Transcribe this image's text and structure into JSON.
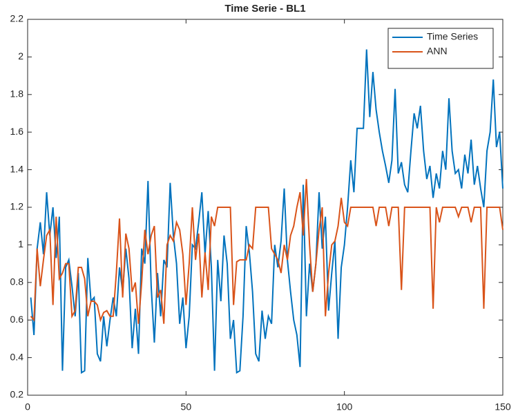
{
  "chart_data": {
    "type": "line",
    "title": "Time Serie - BL1",
    "x": [
      1,
      2,
      3,
      4,
      5,
      6,
      7,
      8,
      9,
      10,
      11,
      12,
      13,
      14,
      15,
      16,
      17,
      18,
      19,
      20,
      21,
      22,
      23,
      24,
      25,
      26,
      27,
      28,
      29,
      30,
      31,
      32,
      33,
      34,
      35,
      36,
      37,
      38,
      39,
      40,
      41,
      42,
      43,
      44,
      45,
      46,
      47,
      48,
      49,
      50,
      51,
      52,
      53,
      54,
      55,
      56,
      57,
      58,
      59,
      60,
      61,
      62,
      63,
      64,
      65,
      66,
      67,
      68,
      69,
      70,
      71,
      72,
      73,
      74,
      75,
      76,
      77,
      78,
      79,
      80,
      81,
      82,
      83,
      84,
      85,
      86,
      87,
      88,
      89,
      90,
      91,
      92,
      93,
      94,
      95,
      96,
      97,
      98,
      99,
      100,
      101,
      102,
      103,
      104,
      105,
      106,
      107,
      108,
      109,
      110,
      111,
      112,
      113,
      114,
      115,
      116,
      117,
      118,
      119,
      120,
      121,
      122,
      123,
      124,
      125,
      126,
      127,
      128,
      129,
      130,
      131,
      132,
      133,
      134,
      135,
      136,
      137,
      138,
      139,
      140,
      141,
      142,
      143,
      144,
      145,
      146,
      147,
      148,
      149,
      150
    ],
    "series": [
      {
        "name": "Time Series",
        "color": "#0072bd",
        "values": [
          0.72,
          0.52,
          0.98,
          1.12,
          0.95,
          1.28,
          1.05,
          1.2,
          0.93,
          1.15,
          0.33,
          0.88,
          0.92,
          0.78,
          0.62,
          0.85,
          0.32,
          0.33,
          0.93,
          0.7,
          0.72,
          0.42,
          0.38,
          0.62,
          0.46,
          0.6,
          0.72,
          0.62,
          0.88,
          0.75,
          0.98,
          0.82,
          0.45,
          0.66,
          0.42,
          0.98,
          0.9,
          1.34,
          0.78,
          0.48,
          0.85,
          0.62,
          0.92,
          0.88,
          1.33,
          1.05,
          0.9,
          0.58,
          0.72,
          0.45,
          0.62,
          1.0,
          0.98,
          1.12,
          1.28,
          0.95,
          1.18,
          0.88,
          0.33,
          0.92,
          0.7,
          1.05,
          0.9,
          0.5,
          0.6,
          0.32,
          0.33,
          0.62,
          1.1,
          0.96,
          0.75,
          0.42,
          0.38,
          0.65,
          0.5,
          0.62,
          0.58,
          1.0,
          0.88,
          1.02,
          1.3,
          0.92,
          0.75,
          0.6,
          0.52,
          0.35,
          1.32,
          0.62,
          0.9,
          0.75,
          0.9,
          1.28,
          0.98,
          1.15,
          0.65,
          0.85,
          1.02,
          0.5,
          0.88,
          1.0,
          1.2,
          1.45,
          1.28,
          1.62,
          1.62,
          1.62,
          2.04,
          1.68,
          1.92,
          1.72,
          1.6,
          1.5,
          1.42,
          1.33,
          1.45,
          1.83,
          1.38,
          1.44,
          1.32,
          1.28,
          1.5,
          1.7,
          1.62,
          1.74,
          1.5,
          1.35,
          1.42,
          1.25,
          1.38,
          1.3,
          1.5,
          1.4,
          1.78,
          1.5,
          1.38,
          1.4,
          1.3,
          1.48,
          1.38,
          1.56,
          1.32,
          1.42,
          1.3,
          1.2,
          1.5,
          1.6,
          1.88,
          1.52,
          1.6,
          1.3
        ]
      },
      {
        "name": "ANN",
        "color": "#d95319",
        "values": [
          0.62,
          0.6,
          0.98,
          0.78,
          0.92,
          1.05,
          1.08,
          0.68,
          1.15,
          0.82,
          0.85,
          0.9,
          0.9,
          0.62,
          0.65,
          0.88,
          0.88,
          0.82,
          0.62,
          0.7,
          0.7,
          0.68,
          0.6,
          0.64,
          0.65,
          0.62,
          0.62,
          0.85,
          1.14,
          0.72,
          1.06,
          0.98,
          0.75,
          0.8,
          0.58,
          0.8,
          1.08,
          0.95,
          1.05,
          1.1,
          0.72,
          0.76,
          0.58,
          1.0,
          1.05,
          1.02,
          1.12,
          1.08,
          0.95,
          0.68,
          0.9,
          1.2,
          0.92,
          1.06,
          0.72,
          0.96,
          0.76,
          1.15,
          1.1,
          1.2,
          1.2,
          1.2,
          1.2,
          1.2,
          0.68,
          0.91,
          0.92,
          0.92,
          0.92,
          1.0,
          0.98,
          1.2,
          1.2,
          1.2,
          1.2,
          1.2,
          0.98,
          0.95,
          0.92,
          0.85,
          1.0,
          0.92,
          1.05,
          1.1,
          1.2,
          1.28,
          1.05,
          1.35,
          1.0,
          0.75,
          0.9,
          1.08,
          1.2,
          0.62,
          0.85,
          1.0,
          1.02,
          1.1,
          1.25,
          1.12,
          1.1,
          1.2,
          1.2,
          1.2,
          1.2,
          1.2,
          1.2,
          1.2,
          1.2,
          1.1,
          1.2,
          1.2,
          1.2,
          1.1,
          1.2,
          1.2,
          1.2,
          0.76,
          1.2,
          1.2,
          1.2,
          1.2,
          1.2,
          1.2,
          1.2,
          1.2,
          1.2,
          0.66,
          1.2,
          1.12,
          1.2,
          1.2,
          1.2,
          1.2,
          1.2,
          1.15,
          1.2,
          1.2,
          1.2,
          1.12,
          1.2,
          1.2,
          1.2,
          0.66,
          1.2,
          1.2,
          1.2,
          1.2,
          1.2,
          1.08
        ]
      }
    ],
    "xlim": [
      0,
      150
    ],
    "xticks": [
      0,
      50,
      100,
      150
    ],
    "ylim": [
      0.2,
      2.2
    ],
    "yticks": [
      0.2,
      0.4,
      0.6,
      0.8,
      1,
      1.2,
      1.4,
      1.6,
      1.8,
      2,
      2.2
    ],
    "legend": "northeast"
  }
}
